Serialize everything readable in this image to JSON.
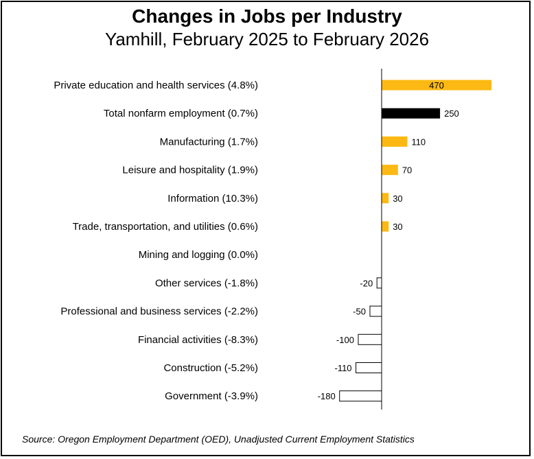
{
  "chart_data": {
    "type": "bar",
    "orientation": "horizontal",
    "title": "Changes in Jobs per Industry",
    "subtitle": "Yamhill, February 2025 to February 2026",
    "categories": [
      "Private education and health services (4.8%)",
      "Total nonfarm employment (0.7%)",
      "Manufacturing (1.7%)",
      "Leisure and hospitality (1.9%)",
      "Information (10.3%)",
      "Trade, transportation, and utilities (0.6%)",
      "Mining and logging (0.0%)",
      "Other services (-1.8%)",
      "Professional and business services (-2.2%)",
      "Financial activities (-8.3%)",
      "Construction (-5.2%)",
      "Government (-3.9%)"
    ],
    "values": [
      470,
      250,
      110,
      70,
      30,
      30,
      0,
      -20,
      -50,
      -100,
      -110,
      -180
    ],
    "value_labels": [
      "470",
      "250",
      "110",
      "70",
      "30",
      "30",
      "",
      "-20",
      "-50",
      "-100",
      "-110",
      "-180"
    ],
    "colors": {
      "positive": "#FDB913",
      "total": "#000000",
      "negative_fill": "#FFFFFF",
      "negative_stroke": "#000000",
      "axis": "#000000"
    },
    "total_index": 1,
    "xlim": [
      -210,
      470
    ],
    "grid": false,
    "legend": "none",
    "source": "Source: Oregon Employment Department (OED), Unadjusted Current Employment Statistics"
  }
}
